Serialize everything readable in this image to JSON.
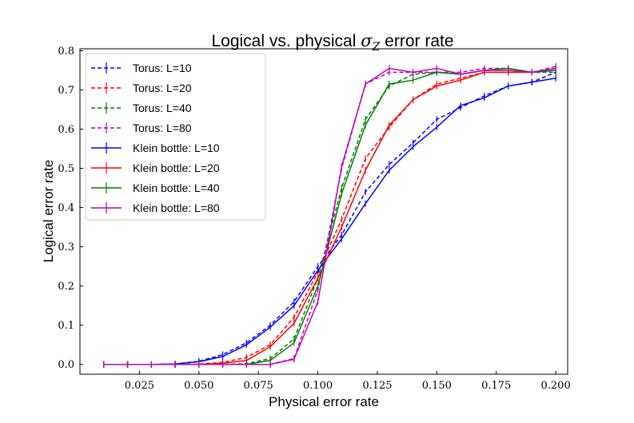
{
  "chart_data": {
    "type": "line",
    "title_prefix": "Logical vs. physical ",
    "title_symbol": "σ",
    "title_subscript": "Z",
    "title_suffix": " error rate",
    "xlabel": "Physical error rate",
    "ylabel": "Logical error rate",
    "xlim": [
      0.0,
      0.205
    ],
    "ylim": [
      -0.025,
      0.805
    ],
    "xticks": [
      "0.025",
      "0.050",
      "0.075",
      "0.100",
      "0.125",
      "0.150",
      "0.175",
      "0.200"
    ],
    "yticks": [
      "0.0",
      "0.1",
      "0.2",
      "0.3",
      "0.4",
      "0.5",
      "0.6",
      "0.7",
      "0.8"
    ],
    "grid": false,
    "legend_position": "top-left",
    "x": [
      0.01,
      0.02,
      0.03,
      0.04,
      0.05,
      0.06,
      0.07,
      0.08,
      0.09,
      0.1,
      0.11,
      0.12,
      0.13,
      0.14,
      0.15,
      0.16,
      0.17,
      0.18,
      0.19,
      0.2
    ],
    "series": [
      {
        "name": "Torus: L=10",
        "color": "#0000ff",
        "dash": true,
        "values": [
          0.0,
          0.0,
          0.0,
          0.001,
          0.008,
          0.025,
          0.055,
          0.1,
          0.16,
          0.25,
          0.33,
          0.44,
          0.51,
          0.565,
          0.625,
          0.655,
          0.685,
          0.71,
          0.72,
          0.745
        ]
      },
      {
        "name": "Torus: L=20",
        "color": "#ff0000",
        "dash": true,
        "values": [
          0.0,
          0.0,
          0.0,
          0.0,
          0.001,
          0.005,
          0.018,
          0.05,
          0.12,
          0.235,
          0.37,
          0.525,
          0.605,
          0.675,
          0.715,
          0.73,
          0.745,
          0.745,
          0.745,
          0.75
        ]
      },
      {
        "name": "Torus: L=40",
        "color": "#008000",
        "dash": true,
        "values": [
          0.0,
          0.0,
          0.0,
          0.0,
          0.0,
          0.0,
          0.002,
          0.015,
          0.065,
          0.22,
          0.45,
          0.625,
          0.71,
          0.74,
          0.745,
          0.74,
          0.75,
          0.755,
          0.745,
          0.745
        ]
      },
      {
        "name": "Torus: L=80",
        "color": "#bf00bf",
        "dash": true,
        "values": [
          0.0,
          0.0,
          0.0,
          0.0,
          0.0,
          0.0,
          0.0,
          0.0,
          0.015,
          0.19,
          0.5,
          0.715,
          0.745,
          0.745,
          0.745,
          0.745,
          0.755,
          0.755,
          0.745,
          0.76
        ]
      },
      {
        "name": "Klein bottle: L=10",
        "color": "#0000ff",
        "dash": false,
        "values": [
          0.0,
          0.0,
          0.0,
          0.001,
          0.007,
          0.02,
          0.05,
          0.095,
          0.15,
          0.24,
          0.32,
          0.41,
          0.495,
          0.555,
          0.605,
          0.66,
          0.68,
          0.71,
          0.72,
          0.73
        ]
      },
      {
        "name": "Klein bottle: L=20",
        "color": "#ff0000",
        "dash": false,
        "values": [
          0.0,
          0.0,
          0.0,
          0.0,
          0.0,
          0.003,
          0.01,
          0.045,
          0.105,
          0.22,
          0.35,
          0.495,
          0.61,
          0.675,
          0.71,
          0.725,
          0.745,
          0.745,
          0.745,
          0.755
        ]
      },
      {
        "name": "Klein bottle: L=40",
        "color": "#008000",
        "dash": false,
        "values": [
          0.0,
          0.0,
          0.0,
          0.0,
          0.0,
          0.0,
          0.0,
          0.01,
          0.055,
          0.2,
          0.435,
          0.61,
          0.715,
          0.725,
          0.745,
          0.74,
          0.75,
          0.755,
          0.745,
          0.75
        ]
      },
      {
        "name": "Klein bottle: L=80",
        "color": "#bf00bf",
        "dash": false,
        "values": [
          0.0,
          0.0,
          0.0,
          0.0,
          0.0,
          0.0,
          0.0,
          0.0,
          0.013,
          0.16,
          0.505,
          0.715,
          0.755,
          0.745,
          0.755,
          0.74,
          0.75,
          0.75,
          0.745,
          0.755
        ]
      }
    ]
  }
}
